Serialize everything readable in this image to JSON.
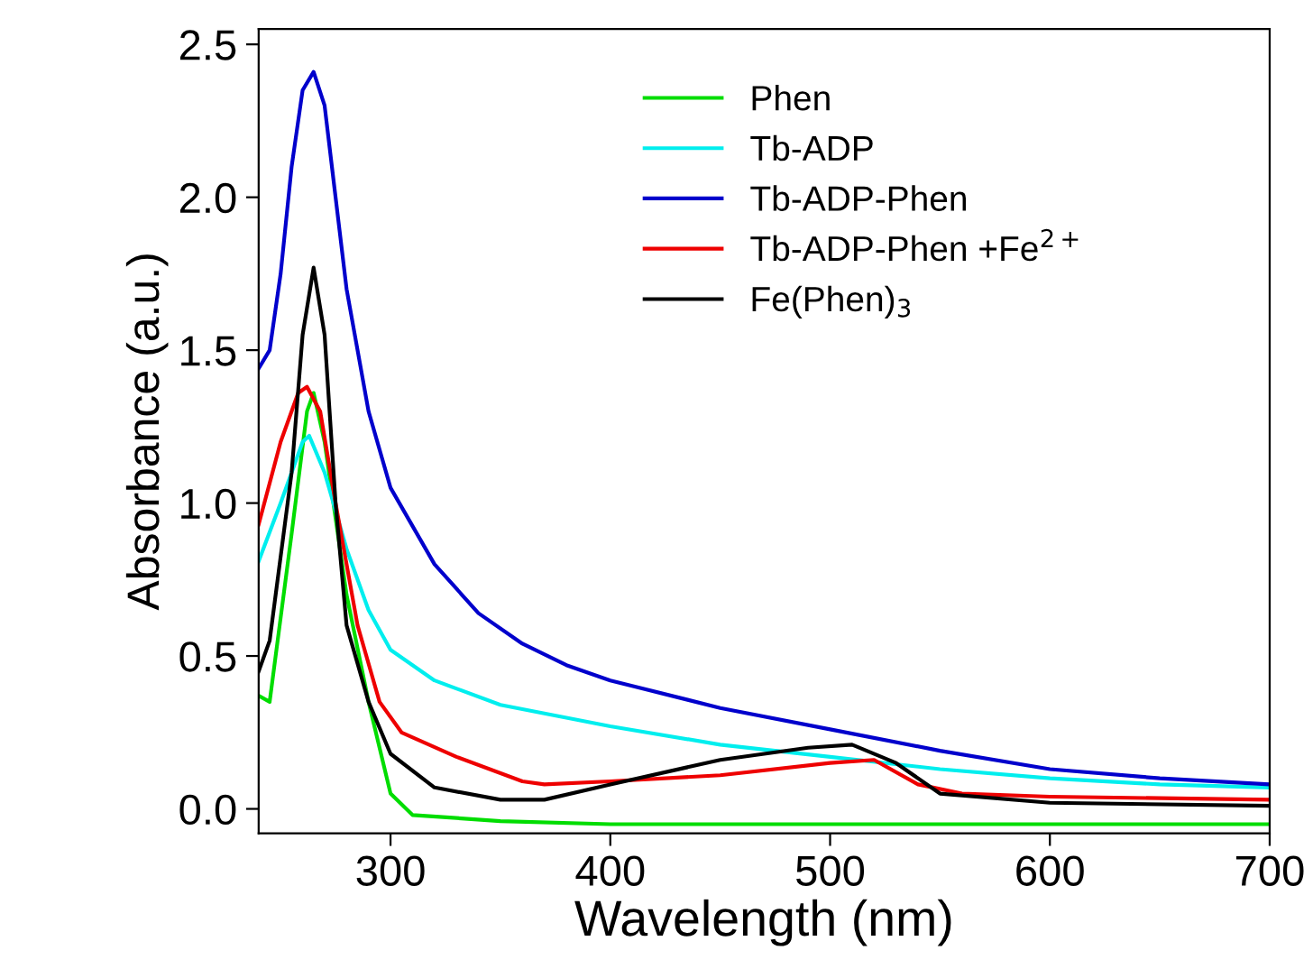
{
  "chart_data": {
    "type": "line",
    "xlabel": "Wavelength (nm)",
    "ylabel": "Absorbance (a.u.)",
    "xlim": [
      240,
      700
    ],
    "ylim": [
      -0.08,
      2.55
    ],
    "xticks": [
      300,
      400,
      500,
      600,
      700
    ],
    "yticks": [
      {
        "value": 0,
        "label": "0.0"
      },
      {
        "value": 0.5,
        "label": "0.5"
      },
      {
        "value": 1,
        "label": "1.0"
      },
      {
        "value": 1.5,
        "label": "1.5"
      },
      {
        "value": 2,
        "label": "2.0"
      },
      {
        "value": 2.5,
        "label": "2.5"
      }
    ],
    "legend": "top right",
    "grid": false,
    "marker": "none",
    "line_style": "solid",
    "series": [
      {
        "name": "Phen",
        "color": "#00dd00",
        "x": [
          240,
          245,
          255,
          262,
          265,
          270,
          280,
          290,
          300,
          310,
          350,
          400,
          700
        ],
        "values": [
          0.37,
          0.35,
          0.9,
          1.3,
          1.36,
          1.2,
          0.7,
          0.35,
          0.05,
          -0.02,
          -0.04,
          -0.05,
          -0.05
        ]
      },
      {
        "name": "Tb-ADP",
        "color": "#00eeee",
        "x": [
          240,
          250,
          260,
          263,
          270,
          280,
          290,
          300,
          320,
          350,
          400,
          450,
          500,
          550,
          600,
          650,
          700
        ],
        "values": [
          0.81,
          1.0,
          1.2,
          1.22,
          1.1,
          0.85,
          0.65,
          0.52,
          0.42,
          0.34,
          0.27,
          0.21,
          0.17,
          0.13,
          0.1,
          0.08,
          0.07
        ]
      },
      {
        "name": "Tb-ADP-Phen",
        "color": "#0000cc",
        "x": [
          240,
          245,
          250,
          255,
          260,
          265,
          270,
          275,
          280,
          290,
          300,
          320,
          340,
          360,
          380,
          400,
          450,
          500,
          550,
          600,
          650,
          700
        ],
        "values": [
          1.44,
          1.5,
          1.75,
          2.1,
          2.35,
          2.41,
          2.3,
          2.0,
          1.7,
          1.3,
          1.05,
          0.8,
          0.64,
          0.54,
          0.47,
          0.42,
          0.33,
          0.26,
          0.19,
          0.13,
          0.1,
          0.08
        ]
      },
      {
        "name": "Tb-ADP-Phen +Fe$^{2+}$",
        "color": "#ee0000",
        "x": [
          240,
          250,
          258,
          262,
          268,
          275,
          285,
          295,
          305,
          330,
          360,
          370,
          400,
          450,
          500,
          520,
          540,
          560,
          600,
          700
        ],
        "values": [
          0.93,
          1.2,
          1.36,
          1.38,
          1.3,
          1.0,
          0.6,
          0.35,
          0.25,
          0.17,
          0.09,
          0.08,
          0.09,
          0.11,
          0.15,
          0.16,
          0.08,
          0.05,
          0.04,
          0.03
        ]
      },
      {
        "name": "Fe(Phen)$_{3}$",
        "color": "#000000",
        "x": [
          240,
          245,
          255,
          260,
          265,
          270,
          275,
          280,
          290,
          300,
          320,
          350,
          370,
          400,
          450,
          490,
          510,
          530,
          550,
          600,
          700
        ],
        "values": [
          0.45,
          0.55,
          1.1,
          1.55,
          1.77,
          1.55,
          1.0,
          0.6,
          0.35,
          0.18,
          0.07,
          0.03,
          0.03,
          0.08,
          0.16,
          0.2,
          0.21,
          0.15,
          0.05,
          0.02,
          0.01
        ]
      }
    ]
  }
}
